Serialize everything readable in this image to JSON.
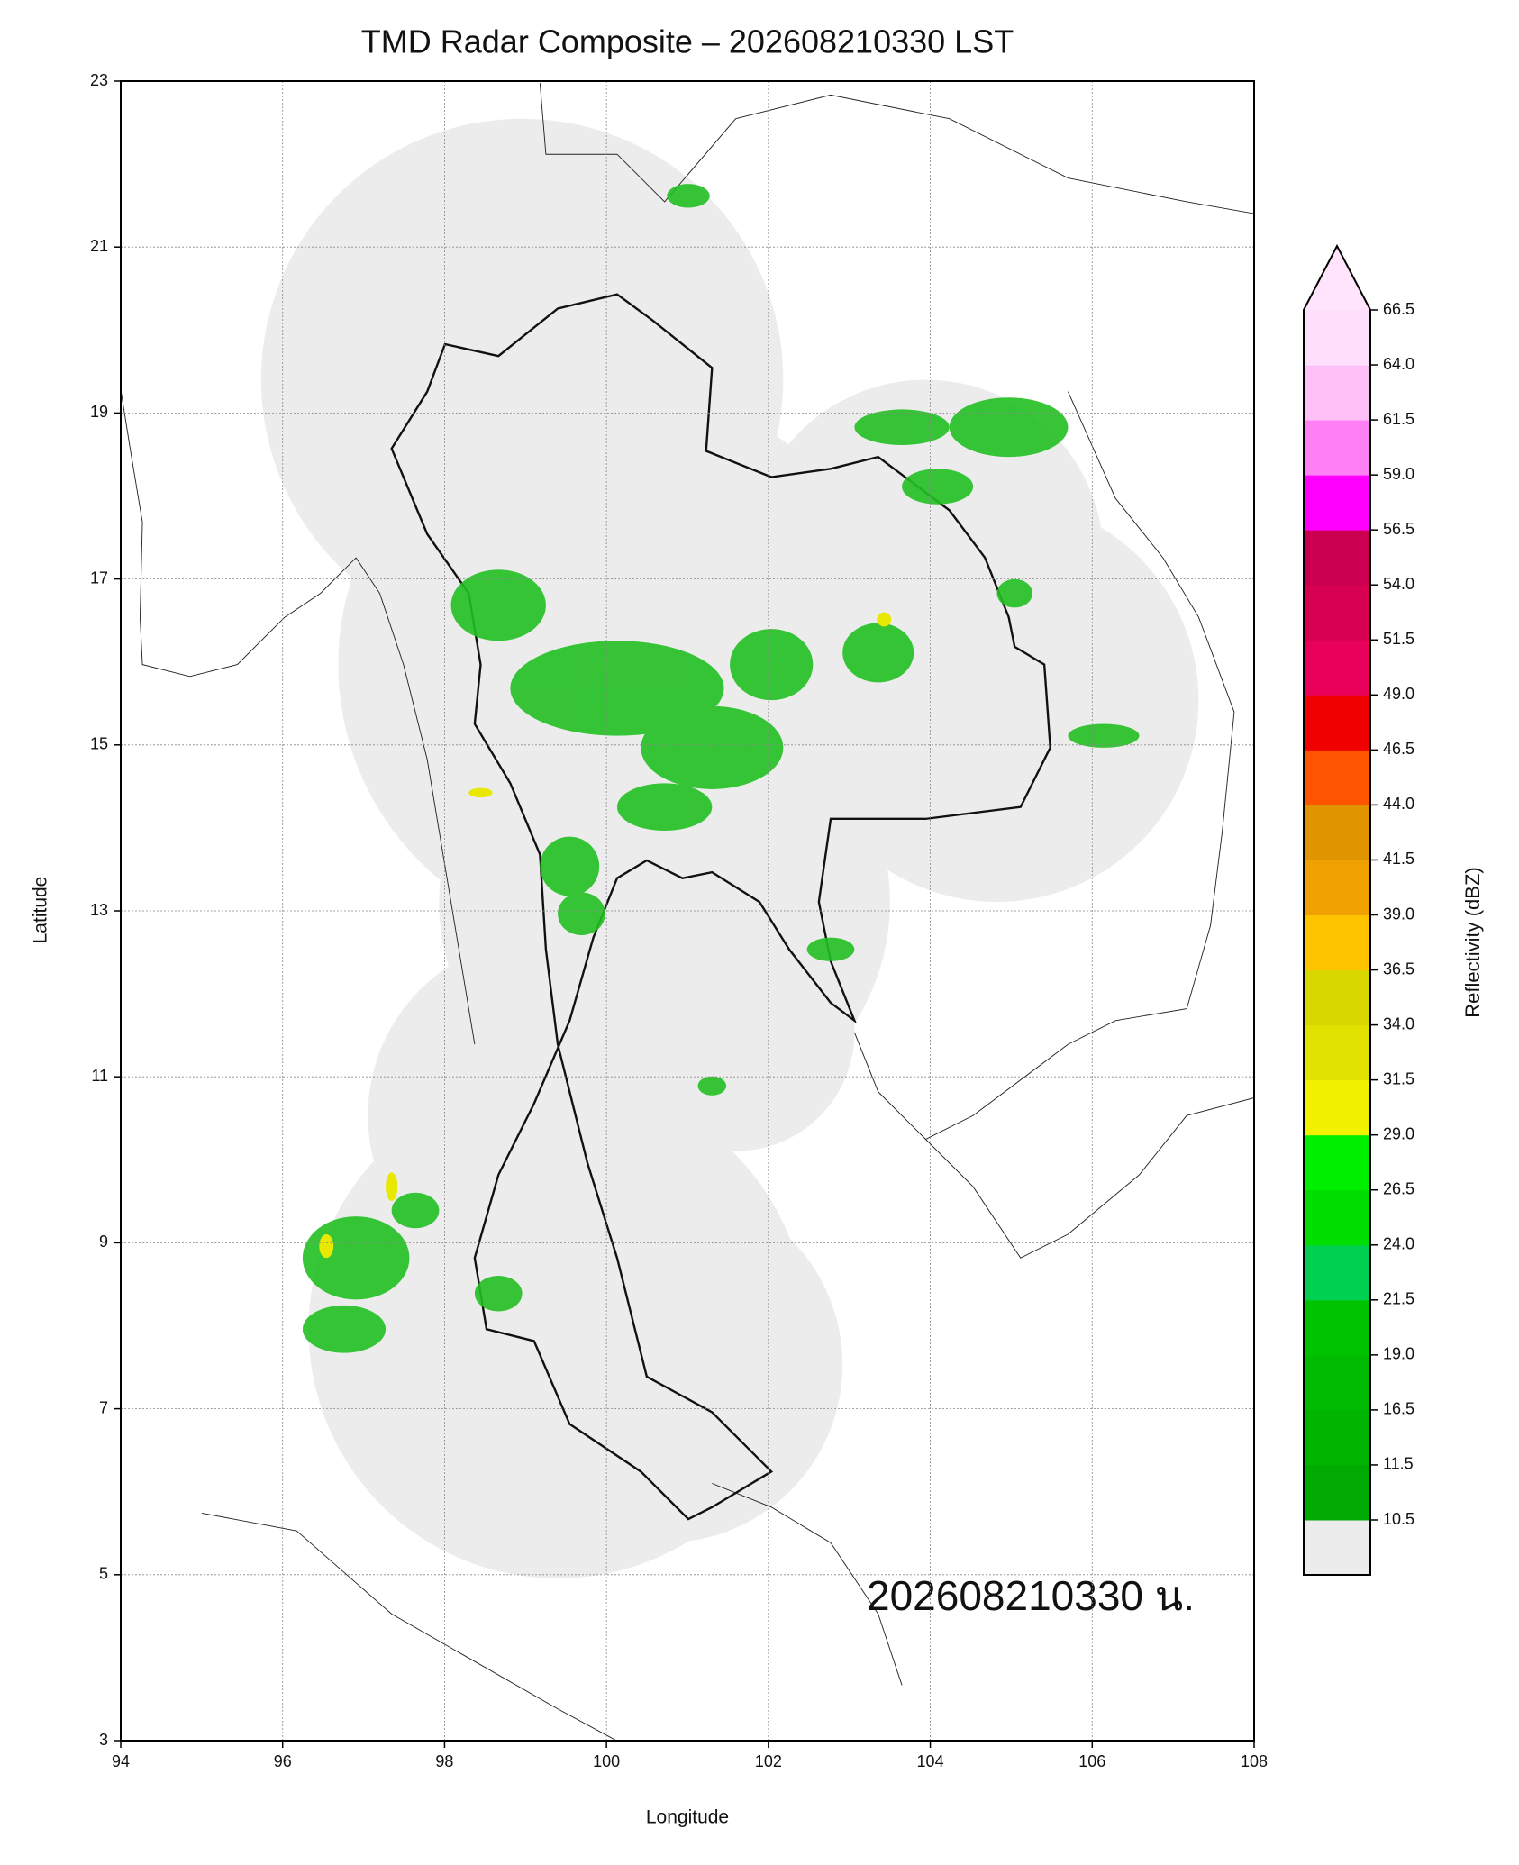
{
  "chart_data": {
    "type": "map",
    "title": "TMD Radar Composite – 202608210330 LST",
    "xlabel": "Longitude",
    "ylabel": "Latitude",
    "xlim": [
      94,
      108
    ],
    "ylim": [
      3,
      23
    ],
    "xticks": [
      94,
      96,
      98,
      100,
      102,
      104,
      106,
      108
    ],
    "yticks": [
      3,
      5,
      7,
      9,
      11,
      13,
      15,
      17,
      19,
      21,
      23
    ],
    "grid": true,
    "annotation": "202608210330 น.",
    "colorbar": {
      "label": "Reflectivity (dBZ)",
      "ticks": [
        10.5,
        11.5,
        16.5,
        {
          "value": 19,
          "label": "19.0"
        },
        21.5,
        {
          "value": 24,
          "label": "24.0"
        },
        26.5,
        {
          "value": 29,
          "label": "29.0"
        },
        31.5,
        {
          "value": 34,
          "label": "34.0"
        },
        36.5,
        {
          "value": 39,
          "label": "39.0"
        },
        41.5,
        {
          "value": 44,
          "label": "44.0"
        },
        46.5,
        {
          "value": 49,
          "label": "49.0"
        },
        51.5,
        {
          "value": 54,
          "label": "54.0"
        },
        56.5,
        {
          "value": 59,
          "label": "59.0"
        },
        61.5,
        {
          "value": 64,
          "label": "64.0"
        },
        66.5
      ],
      "colors": [
        "#00aa00",
        "#00b400",
        "#00bb00",
        "#00c300",
        "#00d050",
        "#00dd00",
        "#00ee00",
        "#f2f200",
        "#e2e200",
        "#d8d800",
        "#ffc400",
        "#f0a000",
        "#e09400",
        "#ff5500",
        "#f00000",
        "#e8005a",
        "#d80050",
        "#cc0050",
        "#ff00ff",
        "#ff80f4",
        "#ffc0f8",
        "#ffe0fc"
      ],
      "under_color": "#ececec",
      "over_color": "#ffe4fb",
      "extend": "max"
    }
  }
}
